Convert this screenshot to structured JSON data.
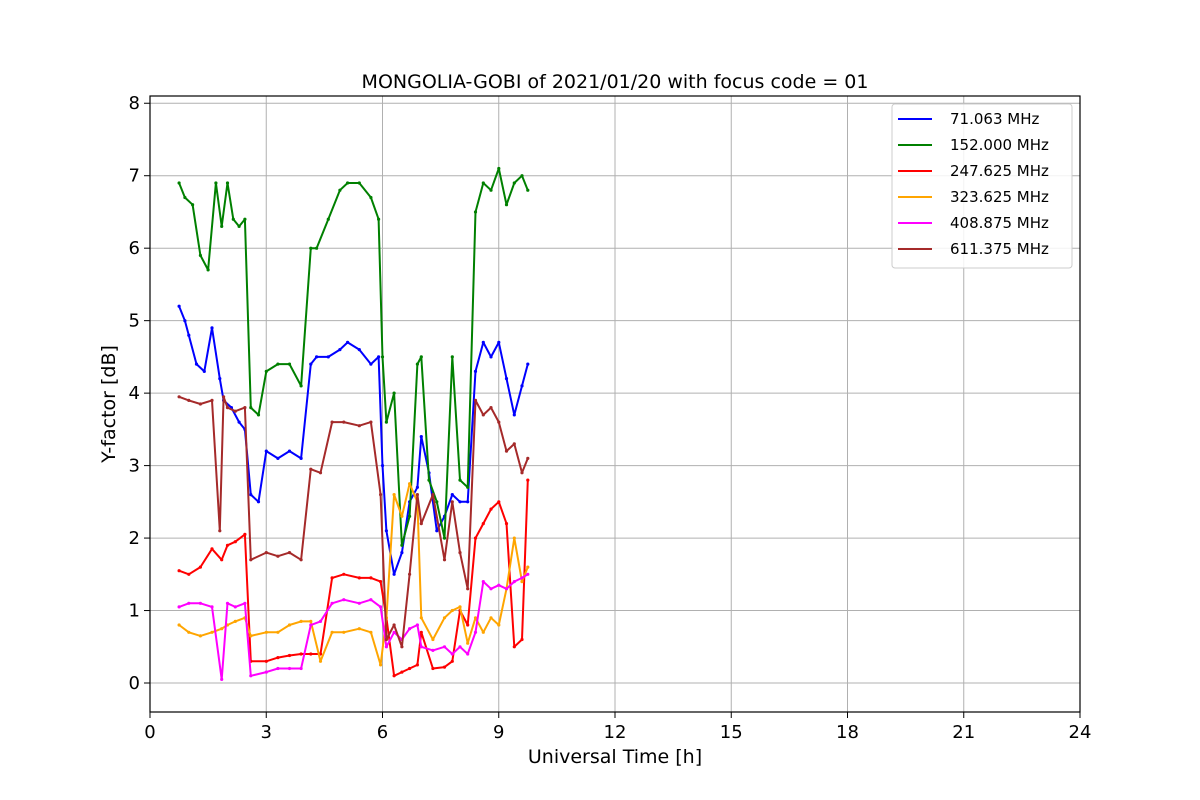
{
  "chart_data": {
    "type": "line",
    "title": "MONGOLIA-GOBI of 2021/01/20 with focus code = 01",
    "xlabel": "Universal Time [h]",
    "ylabel": "Y-factor [dB]",
    "xlim": [
      0,
      24
    ],
    "ylim": [
      -0.4,
      8.1
    ],
    "xticks": [
      0,
      3,
      6,
      9,
      12,
      15,
      18,
      21,
      24
    ],
    "yticks": [
      0,
      1,
      2,
      3,
      4,
      5,
      6,
      7,
      8
    ],
    "grid": true,
    "legend_position": "top-right",
    "series": [
      {
        "name": "71.063 MHz",
        "legend_label": " 71.063 MHz",
        "color": "#0000ff",
        "x": [
          0.75,
          0.9,
          1.0,
          1.2,
          1.4,
          1.6,
          1.8,
          1.9,
          2.1,
          2.3,
          2.45,
          2.6,
          2.8,
          3.0,
          3.3,
          3.6,
          3.9,
          4.15,
          4.3,
          4.6,
          4.9,
          5.1,
          5.4,
          5.7,
          5.9,
          6.0,
          6.1,
          6.3,
          6.5,
          6.7,
          6.9,
          7.0,
          7.2,
          7.4,
          7.6,
          7.8,
          8.0,
          8.2,
          8.4,
          8.6,
          8.8,
          9.0,
          9.2,
          9.4,
          9.6,
          9.75
        ],
        "y": [
          5.2,
          5.0,
          4.8,
          4.4,
          4.3,
          4.9,
          4.2,
          3.9,
          3.8,
          3.6,
          3.5,
          2.6,
          2.5,
          3.2,
          3.1,
          3.2,
          3.1,
          4.4,
          4.5,
          4.5,
          4.6,
          4.7,
          4.6,
          4.4,
          4.5,
          3.0,
          2.1,
          1.5,
          1.8,
          2.5,
          2.7,
          3.4,
          2.9,
          2.1,
          2.3,
          2.6,
          2.5,
          2.5,
          4.3,
          4.7,
          4.5,
          4.7,
          4.2,
          3.7,
          4.1,
          4.4
        ]
      },
      {
        "name": "152.000 MHz",
        "legend_label": "152.000 MHz",
        "color": "#008000",
        "x": [
          0.75,
          0.9,
          1.1,
          1.3,
          1.5,
          1.7,
          1.85,
          2.0,
          2.15,
          2.3,
          2.45,
          2.6,
          2.8,
          3.0,
          3.3,
          3.6,
          3.9,
          4.15,
          4.3,
          4.6,
          4.9,
          5.1,
          5.4,
          5.7,
          5.9,
          6.0,
          6.1,
          6.3,
          6.5,
          6.7,
          6.9,
          7.0,
          7.2,
          7.4,
          7.6,
          7.8,
          8.0,
          8.2,
          8.4,
          8.6,
          8.8,
          9.0,
          9.2,
          9.4,
          9.6,
          9.75
        ],
        "y": [
          6.9,
          6.7,
          6.6,
          5.9,
          5.7,
          6.9,
          6.3,
          6.9,
          6.4,
          6.3,
          6.4,
          3.8,
          3.7,
          4.3,
          4.4,
          4.4,
          4.1,
          6.0,
          6.0,
          6.4,
          6.8,
          6.9,
          6.9,
          6.7,
          6.4,
          4.5,
          3.6,
          4.0,
          1.9,
          2.3,
          4.4,
          4.5,
          2.8,
          2.5,
          2.0,
          4.5,
          2.8,
          2.7,
          6.5,
          6.9,
          6.8,
          7.1,
          6.6,
          6.9,
          7.0,
          6.8
        ]
      },
      {
        "name": "247.625 MHz",
        "legend_label": "247.625 MHz",
        "color": "#ff0000",
        "x": [
          0.75,
          1.0,
          1.3,
          1.6,
          1.85,
          2.0,
          2.2,
          2.45,
          2.6,
          3.0,
          3.3,
          3.6,
          3.9,
          4.15,
          4.4,
          4.7,
          5.0,
          5.4,
          5.7,
          5.95,
          6.1,
          6.3,
          6.5,
          6.7,
          6.9,
          7.0,
          7.3,
          7.6,
          7.8,
          8.0,
          8.2,
          8.4,
          8.6,
          8.8,
          9.0,
          9.2,
          9.4,
          9.6,
          9.75
        ],
        "y": [
          1.55,
          1.5,
          1.6,
          1.85,
          1.7,
          1.9,
          1.95,
          2.05,
          0.3,
          0.3,
          0.35,
          0.38,
          0.4,
          0.4,
          0.4,
          1.45,
          1.5,
          1.45,
          1.45,
          1.4,
          0.9,
          0.1,
          0.15,
          0.2,
          0.25,
          0.7,
          0.2,
          0.22,
          0.3,
          1.0,
          0.8,
          2.0,
          2.2,
          2.4,
          2.5,
          2.2,
          0.5,
          0.6,
          2.8
        ]
      },
      {
        "name": "323.625 MHz",
        "legend_label": "323.625 MHz",
        "color": "#ffa500",
        "x": [
          0.75,
          1.0,
          1.3,
          1.6,
          1.85,
          2.0,
          2.2,
          2.45,
          2.6,
          3.0,
          3.3,
          3.6,
          3.9,
          4.15,
          4.4,
          4.7,
          5.0,
          5.4,
          5.7,
          5.95,
          6.1,
          6.3,
          6.5,
          6.7,
          6.9,
          7.0,
          7.3,
          7.6,
          7.8,
          8.0,
          8.2,
          8.4,
          8.6,
          8.8,
          9.0,
          9.2,
          9.4,
          9.6,
          9.75
        ],
        "y": [
          0.8,
          0.7,
          0.65,
          0.7,
          0.75,
          0.8,
          0.85,
          0.9,
          0.65,
          0.7,
          0.7,
          0.8,
          0.85,
          0.85,
          0.3,
          0.7,
          0.7,
          0.75,
          0.7,
          0.25,
          0.9,
          2.6,
          2.3,
          2.75,
          2.5,
          0.9,
          0.6,
          0.9,
          1.0,
          1.05,
          0.55,
          0.9,
          0.7,
          0.9,
          0.8,
          1.3,
          2.0,
          1.4,
          1.6
        ]
      },
      {
        "name": "408.875 MHz",
        "legend_label": "408.875 MHz",
        "color": "#ff00ff",
        "x": [
          0.75,
          1.0,
          1.3,
          1.6,
          1.85,
          2.0,
          2.2,
          2.45,
          2.6,
          3.0,
          3.3,
          3.6,
          3.9,
          4.15,
          4.4,
          4.7,
          5.0,
          5.4,
          5.7,
          5.95,
          6.1,
          6.3,
          6.5,
          6.7,
          6.9,
          7.0,
          7.3,
          7.6,
          7.8,
          8.0,
          8.2,
          8.4,
          8.6,
          8.8,
          9.0,
          9.2,
          9.4,
          9.6,
          9.75
        ],
        "y": [
          1.05,
          1.1,
          1.1,
          1.05,
          0.05,
          1.1,
          1.05,
          1.1,
          0.1,
          0.15,
          0.2,
          0.2,
          0.2,
          0.8,
          0.85,
          1.1,
          1.15,
          1.1,
          1.15,
          1.05,
          0.5,
          0.7,
          0.6,
          0.75,
          0.8,
          0.5,
          0.45,
          0.5,
          0.4,
          0.5,
          0.4,
          0.7,
          1.4,
          1.3,
          1.35,
          1.3,
          1.4,
          1.45,
          1.5
        ]
      },
      {
        "name": "611.375 MHz",
        "legend_label": "611.375 MHz",
        "color": "#a52a2a",
        "x": [
          0.75,
          1.0,
          1.3,
          1.6,
          1.8,
          1.9,
          2.0,
          2.2,
          2.45,
          2.6,
          3.0,
          3.3,
          3.6,
          3.9,
          4.15,
          4.4,
          4.7,
          5.0,
          5.4,
          5.7,
          5.95,
          6.1,
          6.3,
          6.5,
          6.7,
          6.9,
          7.0,
          7.3,
          7.6,
          7.8,
          8.0,
          8.2,
          8.4,
          8.6,
          8.8,
          9.0,
          9.2,
          9.4,
          9.6,
          9.75
        ],
        "y": [
          3.95,
          3.9,
          3.85,
          3.9,
          2.1,
          3.95,
          3.8,
          3.75,
          3.8,
          1.7,
          1.8,
          1.75,
          1.8,
          1.7,
          2.95,
          2.9,
          3.6,
          3.6,
          3.55,
          3.6,
          2.6,
          0.6,
          0.8,
          0.5,
          1.5,
          2.6,
          2.2,
          2.6,
          1.7,
          2.5,
          1.8,
          1.3,
          3.9,
          3.7,
          3.8,
          3.6,
          3.2,
          3.3,
          2.9,
          3.1
        ]
      }
    ]
  }
}
